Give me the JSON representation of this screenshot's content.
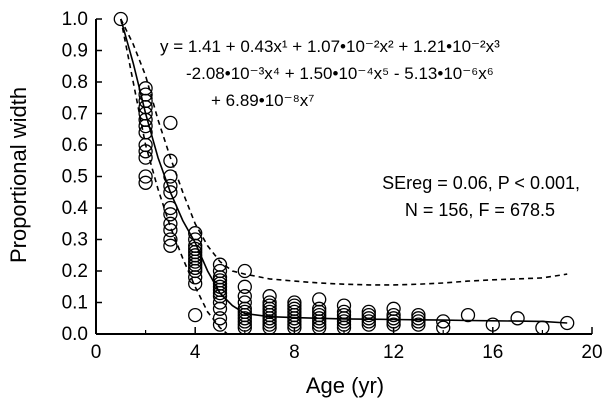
{
  "chart_data": {
    "type": "scatter",
    "xlabel": "Age (yr)",
    "ylabel": "Proportional width",
    "xlim": [
      0,
      20
    ],
    "ylim": [
      0,
      1.0
    ],
    "x_ticks": [
      "0",
      "4",
      "8",
      "12",
      "16",
      "20"
    ],
    "y_ticks": [
      "0.0",
      "0.1",
      "0.2",
      "0.3",
      "0.4",
      "0.5",
      "0.6",
      "0.7",
      "0.8",
      "0.9",
      "1.0"
    ],
    "grid": false,
    "equation_lines": [
      "y = 1.41 + 0.43x¹ + 1.07•10⁻²x² + 1.21•10⁻²x³",
      "-2.08•10⁻³x⁴ + 1.50•10⁻⁴x⁵ - 5.13•10⁻⁶x⁶",
      "+ 6.89•10⁻⁸x⁷"
    ],
    "stats_lines": [
      "SEreg = 0.06, P < 0.001,",
      "N = 156, F = 678.5"
    ],
    "points": [
      [
        1,
        1.0
      ],
      [
        2,
        0.78
      ],
      [
        2,
        0.76
      ],
      [
        2,
        0.74
      ],
      [
        2,
        0.72
      ],
      [
        2,
        0.7
      ],
      [
        2,
        0.68
      ],
      [
        2,
        0.66
      ],
      [
        2,
        0.64
      ],
      [
        2,
        0.6
      ],
      [
        2,
        0.58
      ],
      [
        2,
        0.56
      ],
      [
        2,
        0.5
      ],
      [
        2,
        0.48
      ],
      [
        3,
        0.67
      ],
      [
        3,
        0.55
      ],
      [
        3,
        0.5
      ],
      [
        3,
        0.47
      ],
      [
        3,
        0.45
      ],
      [
        3,
        0.4
      ],
      [
        3,
        0.38
      ],
      [
        3,
        0.35
      ],
      [
        3,
        0.33
      ],
      [
        3,
        0.3
      ],
      [
        3,
        0.28
      ],
      [
        4,
        0.32
      ],
      [
        4,
        0.3
      ],
      [
        4,
        0.28
      ],
      [
        4,
        0.27
      ],
      [
        4,
        0.26
      ],
      [
        4,
        0.25
      ],
      [
        4,
        0.24
      ],
      [
        4,
        0.23
      ],
      [
        4,
        0.22
      ],
      [
        4,
        0.21
      ],
      [
        4,
        0.2
      ],
      [
        4,
        0.18
      ],
      [
        4,
        0.16
      ],
      [
        4,
        0.06
      ],
      [
        5,
        0.22
      ],
      [
        5,
        0.2
      ],
      [
        5,
        0.18
      ],
      [
        5,
        0.17
      ],
      [
        5,
        0.16
      ],
      [
        5,
        0.15
      ],
      [
        5,
        0.14
      ],
      [
        5,
        0.13
      ],
      [
        5,
        0.12
      ],
      [
        5,
        0.1
      ],
      [
        5,
        0.08
      ],
      [
        5,
        0.05
      ],
      [
        5,
        0.03
      ],
      [
        6,
        0.2
      ],
      [
        6,
        0.15
      ],
      [
        6,
        0.12
      ],
      [
        6,
        0.1
      ],
      [
        6,
        0.08
      ],
      [
        6,
        0.07
      ],
      [
        6,
        0.06
      ],
      [
        6,
        0.05
      ],
      [
        6,
        0.04
      ],
      [
        6,
        0.03
      ],
      [
        6,
        0.02
      ],
      [
        7,
        0.12
      ],
      [
        7,
        0.1
      ],
      [
        7,
        0.09
      ],
      [
        7,
        0.08
      ],
      [
        7,
        0.07
      ],
      [
        7,
        0.06
      ],
      [
        7,
        0.05
      ],
      [
        7,
        0.04
      ],
      [
        7,
        0.03
      ],
      [
        7,
        0.02
      ],
      [
        8,
        0.1
      ],
      [
        8,
        0.09
      ],
      [
        8,
        0.08
      ],
      [
        8,
        0.07
      ],
      [
        8,
        0.06
      ],
      [
        8,
        0.05
      ],
      [
        8,
        0.04
      ],
      [
        8,
        0.03
      ],
      [
        8,
        0.02
      ],
      [
        9,
        0.11
      ],
      [
        9,
        0.08
      ],
      [
        9,
        0.07
      ],
      [
        9,
        0.06
      ],
      [
        9,
        0.05
      ],
      [
        9,
        0.04
      ],
      [
        9,
        0.03
      ],
      [
        9,
        0.02
      ],
      [
        10,
        0.09
      ],
      [
        10,
        0.07
      ],
      [
        10,
        0.06
      ],
      [
        10,
        0.05
      ],
      [
        10,
        0.04
      ],
      [
        10,
        0.03
      ],
      [
        10,
        0.02
      ],
      [
        11,
        0.07
      ],
      [
        11,
        0.06
      ],
      [
        11,
        0.05
      ],
      [
        11,
        0.04
      ],
      [
        11,
        0.03
      ],
      [
        12,
        0.08
      ],
      [
        12,
        0.06
      ],
      [
        12,
        0.05
      ],
      [
        12,
        0.04
      ],
      [
        12,
        0.03
      ],
      [
        13,
        0.06
      ],
      [
        13,
        0.05
      ],
      [
        13,
        0.04
      ],
      [
        13,
        0.03
      ],
      [
        14,
        0.04
      ],
      [
        14,
        0.02
      ],
      [
        15,
        0.06
      ],
      [
        16,
        0.03
      ],
      [
        17,
        0.05
      ],
      [
        18,
        0.02
      ],
      [
        19,
        0.035
      ]
    ],
    "fit_line": {
      "style": "solid",
      "x": [
        1,
        1.5,
        2,
        2.5,
        3,
        3.5,
        4,
        4.5,
        5,
        5.5,
        6,
        7,
        8,
        9,
        10,
        11,
        12,
        13,
        14,
        15,
        16,
        17,
        18,
        19
      ],
      "y": [
        1.0,
        0.86,
        0.7,
        0.56,
        0.45,
        0.36,
        0.29,
        0.2,
        0.13,
        0.09,
        0.065,
        0.055,
        0.052,
        0.05,
        0.048,
        0.047,
        0.046,
        0.045,
        0.044,
        0.043,
        0.042,
        0.041,
        0.04,
        0.035
      ]
    },
    "upper_band": {
      "style": "dashed",
      "x": [
        1,
        1.5,
        2,
        2.5,
        3,
        3.5,
        4,
        4.5,
        5,
        5.5,
        6,
        7,
        8,
        9,
        10,
        11,
        12,
        13,
        14,
        15,
        16,
        17,
        18,
        19
      ],
      "y": [
        1.0,
        0.92,
        0.82,
        0.68,
        0.56,
        0.45,
        0.35,
        0.28,
        0.23,
        0.2,
        0.19,
        0.175,
        0.168,
        0.162,
        0.158,
        0.156,
        0.156,
        0.158,
        0.162,
        0.168,
        0.172,
        0.175,
        0.178,
        0.19
      ]
    },
    "lower_band": {
      "style": "dashed",
      "x": [
        1,
        1.5,
        2,
        2.5,
        3,
        3.5,
        4,
        4.5,
        5,
        5.3
      ],
      "y": [
        1.0,
        0.8,
        0.6,
        0.46,
        0.34,
        0.24,
        0.15,
        0.07,
        0.02,
        0.0
      ]
    }
  }
}
